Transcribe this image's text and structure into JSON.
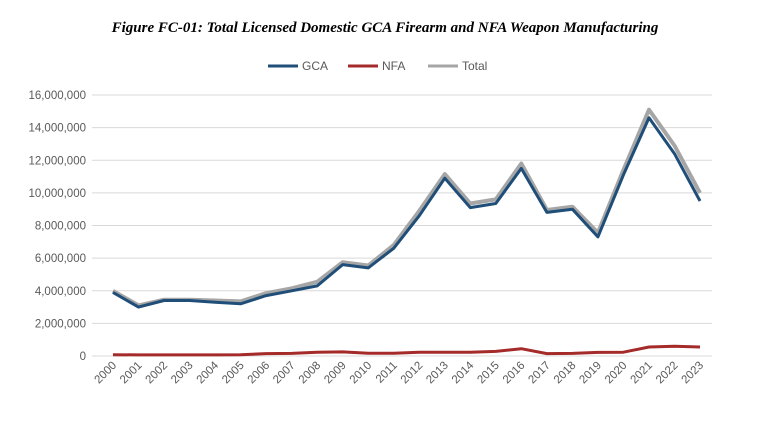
{
  "chart_data": {
    "type": "line",
    "title": "Figure FC-01: Total Licensed Domestic GCA Firearm and NFA Weapon Manufacturing",
    "xlabel": "",
    "ylabel": "",
    "x": [
      "2000",
      "2001",
      "2002",
      "2003",
      "2004",
      "2005",
      "2006",
      "2007",
      "2008",
      "2009",
      "2010",
      "2011",
      "2012",
      "2013",
      "2014",
      "2015",
      "2016",
      "2017",
      "2018",
      "2019",
      "2020",
      "2021",
      "2022",
      "2023"
    ],
    "ylim": [
      0,
      16000000
    ],
    "yticks": [
      0,
      2000000,
      4000000,
      6000000,
      8000000,
      10000000,
      12000000,
      14000000,
      16000000
    ],
    "ytick_labels": [
      "0",
      "2,000,000",
      "4,000,000",
      "6,000,000",
      "8,000,000",
      "10,000,000",
      "12,000,000",
      "14,000,000",
      "16,000,000"
    ],
    "grid": "horizontal",
    "legend": "top",
    "series": [
      {
        "name": "Total",
        "color": "#A6A6A6",
        "values": [
          4000000,
          3100000,
          3450000,
          3450000,
          3400000,
          3350000,
          3850000,
          4150000,
          4550000,
          5750000,
          5550000,
          6800000,
          8900000,
          11150000,
          9350000,
          9600000,
          11800000,
          8950000,
          9150000,
          7550000,
          11400000,
          15100000,
          12900000,
          10000000
        ]
      },
      {
        "name": "GCA",
        "color": "#1F4E79",
        "values": [
          3900000,
          3000000,
          3400000,
          3400000,
          3300000,
          3200000,
          3700000,
          4000000,
          4300000,
          5600000,
          5400000,
          6600000,
          8600000,
          10900000,
          9100000,
          9350000,
          11500000,
          8800000,
          9000000,
          7300000,
          11100000,
          14600000,
          12400000,
          9500000
        ]
      },
      {
        "name": "NFA",
        "color": "#A52A2A",
        "values": [
          80000,
          70000,
          70000,
          70000,
          70000,
          80000,
          150000,
          160000,
          230000,
          250000,
          170000,
          170000,
          230000,
          230000,
          230000,
          280000,
          450000,
          150000,
          160000,
          220000,
          230000,
          550000,
          600000,
          550000
        ]
      }
    ],
    "legend_order": [
      "GCA",
      "NFA",
      "Total"
    ]
  }
}
